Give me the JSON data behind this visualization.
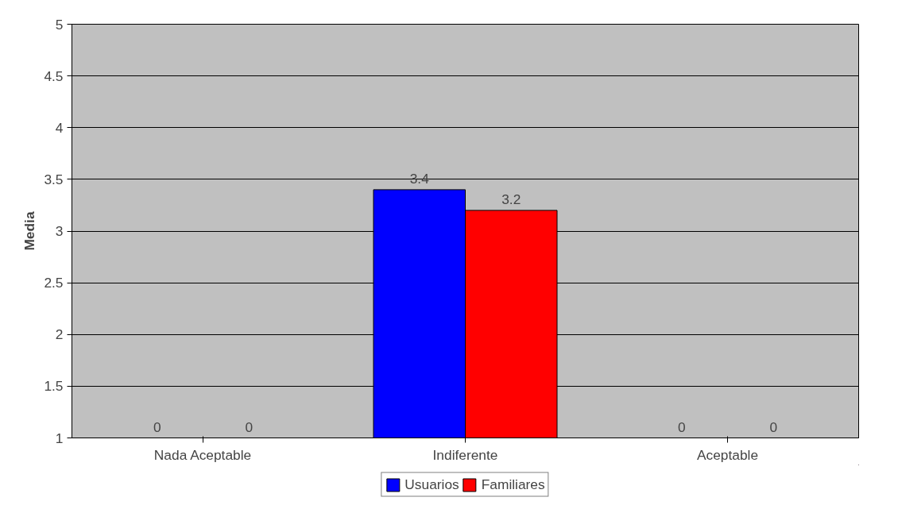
{
  "chart_data": {
    "type": "bar",
    "ylabel": "Media",
    "categories": [
      "Nada Aceptable",
      "Indiferente",
      "Aceptable"
    ],
    "series": [
      {
        "name": "Usuarios",
        "color": "#0000ff",
        "values": [
          null,
          3.4,
          null
        ],
        "value_labels": [
          "0",
          "3.4",
          "0"
        ]
      },
      {
        "name": "Familiares",
        "color": "#ff0000",
        "values": [
          null,
          3.2,
          null
        ],
        "value_labels": [
          "0",
          "3.2",
          "0"
        ]
      }
    ],
    "ylim": [
      1,
      5
    ],
    "yticks": [
      1,
      1.5,
      2,
      2.5,
      3,
      3.5,
      4,
      4.5,
      5
    ],
    "grid": "y",
    "legend": "bottom"
  }
}
